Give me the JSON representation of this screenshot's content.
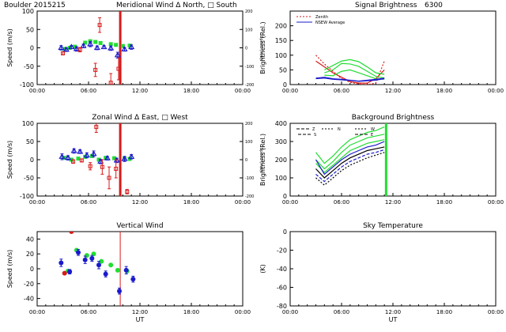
{
  "colors": {
    "red": "#d81b1b",
    "green": "#22dd33",
    "blue": "#1a1acc",
    "black": "#000000",
    "axis": "#000000"
  },
  "chart_data": [
    {
      "id": "meridional",
      "type": "scatter",
      "title_left": "Boulder  2015215",
      "title": "Meridional Wind  Δ North, □ South",
      "ylabel": "Speed (m/s)",
      "ylabel_right": "Speed (m/s)",
      "ylim": [
        -100,
        100
      ],
      "yticks": [
        -100,
        -50,
        0,
        50,
        100
      ],
      "ylim_right": [
        -200,
        200
      ],
      "yticks_right": [
        -200,
        -100,
        0,
        100,
        200
      ],
      "xlim": [
        0,
        24
      ],
      "xticks": [
        "00:00",
        "06:00",
        "12:00",
        "18:00",
        "00:00"
      ],
      "vline": {
        "x": 9.7,
        "color": "red"
      },
      "series": [
        {
          "name": "north-green",
          "color": "green",
          "x": [
            3.2,
            3.8,
            4.4,
            5.6,
            6.2,
            6.8,
            7.4,
            8.6,
            9.2,
            10.0,
            10.8
          ],
          "y": [
            -3,
            0,
            3,
            14,
            18,
            16,
            13,
            10,
            8,
            5,
            6
          ],
          "err": [
            0,
            0,
            0,
            0,
            0,
            0,
            0,
            0,
            0,
            0,
            0
          ]
        },
        {
          "name": "vertical-blue",
          "color": "blue",
          "x": [
            2.8,
            3.4,
            4.0,
            4.6,
            5.4,
            6.2,
            7.0,
            7.8,
            8.6,
            9.4,
            10.2,
            11.0
          ],
          "y": [
            0,
            -5,
            2,
            -3,
            5,
            10,
            0,
            2,
            -1,
            -20,
            -4,
            2
          ],
          "err": [
            6,
            5,
            4,
            6,
            5,
            7,
            5,
            4,
            6,
            8,
            5,
            6
          ]
        },
        {
          "name": "south-red",
          "color": "red",
          "x": [
            3.0,
            5.0,
            6.8,
            7.3,
            8.6,
            9.5
          ],
          "y": [
            -15,
            -5,
            -60,
            62,
            -95,
            -57
          ],
          "err": [
            4,
            6,
            18,
            20,
            25,
            30
          ]
        }
      ]
    },
    {
      "id": "zonal",
      "type": "scatter",
      "title": "Zonal Wind   Δ East, □ West",
      "ylabel": "Speed (m/s)",
      "ylabel_right": "Speed (m/s)",
      "ylim": [
        -100,
        100
      ],
      "yticks": [
        -100,
        -50,
        0,
        50,
        100
      ],
      "ylim_right": [
        -200,
        200
      ],
      "yticks_right": [
        -200,
        -100,
        0,
        100,
        200
      ],
      "xlim": [
        0,
        24
      ],
      "xticks": [
        "00:00",
        "06:00",
        "12:00",
        "18:00",
        "00:00"
      ],
      "vline": {
        "x": 9.7,
        "color": "red"
      },
      "series": [
        {
          "name": "east-green",
          "color": "green",
          "x": [
            3.2,
            4.0,
            4.8,
            5.6,
            6.4,
            7.2,
            8.0,
            9.0,
            10.2,
            10.8
          ],
          "y": [
            5,
            0,
            3,
            8,
            10,
            0,
            5,
            4,
            3,
            2
          ],
          "err": [
            0,
            0,
            0,
            0,
            0,
            0,
            0,
            0,
            0,
            0
          ]
        },
        {
          "name": "vertical-blue",
          "color": "blue",
          "x": [
            2.9,
            3.6,
            4.3,
            5.0,
            5.8,
            6.6,
            7.4,
            8.2,
            9.3,
            10.2,
            11.0
          ],
          "y": [
            8,
            5,
            24,
            22,
            12,
            16,
            -5,
            4,
            -2,
            2,
            8
          ],
          "err": [
            8,
            6,
            6,
            5,
            7,
            8,
            6,
            5,
            6,
            7,
            6
          ]
        },
        {
          "name": "west-red",
          "color": "red",
          "x": [
            4.2,
            5.2,
            6.2,
            6.9,
            7.6,
            8.4,
            9.2,
            10.5
          ],
          "y": [
            -5,
            -2,
            -18,
            90,
            -20,
            -50,
            -25,
            -88
          ],
          "err": [
            5,
            4,
            10,
            15,
            20,
            30,
            25,
            6
          ]
        }
      ]
    },
    {
      "id": "vertical",
      "type": "scatter",
      "title": "Vertical Wind",
      "ylabel": "Speed (m/s)",
      "ylim": [
        -50,
        50
      ],
      "yticks": [
        -40,
        -20,
        0,
        20,
        40
      ],
      "xlim": [
        0,
        24
      ],
      "xticks": [
        "00:00",
        "06:00",
        "12:00",
        "18:00",
        "00:00"
      ],
      "xlabel": "UT",
      "vline": {
        "x": 9.7,
        "color": "red"
      },
      "series": [
        {
          "name": "green",
          "color": "green",
          "x": [
            3.6,
            4.6,
            5.8,
            6.6,
            7.5,
            8.6,
            9.4,
            10.5
          ],
          "y": [
            -3,
            25,
            18,
            20,
            10,
            5,
            -2,
            -3
          ],
          "err": [
            0,
            0,
            0,
            0,
            0,
            0,
            0,
            0
          ]
        },
        {
          "name": "blue",
          "color": "blue",
          "x": [
            2.8,
            3.8,
            4.8,
            5.6,
            6.4,
            7.2,
            8.0,
            9.6,
            10.4,
            11.2
          ],
          "y": [
            8,
            -4,
            22,
            12,
            14,
            5,
            -7,
            -30,
            -2,
            -14
          ],
          "err": [
            5,
            3,
            4,
            5,
            4,
            5,
            4,
            4,
            5,
            4
          ]
        },
        {
          "name": "red",
          "color": "red",
          "x": [
            3.2,
            4.0
          ],
          "y": [
            -6,
            50
          ],
          "err": [
            0,
            0
          ]
        }
      ]
    },
    {
      "id": "signal",
      "type": "line",
      "title": "Signal Brightness",
      "title_right": "6300",
      "ylabel": "Brightness (Rel.)",
      "ylim": [
        0,
        250
      ],
      "yticks": [
        0,
        50,
        100,
        150,
        200
      ],
      "xlim": [
        0,
        24
      ],
      "xticks": [
        "00:00",
        "06:00",
        "12:00",
        "18:00",
        "00:00"
      ],
      "legend": [
        "Zenith",
        "NSEW Average"
      ],
      "series": [
        {
          "name": "Zenith",
          "color": "red",
          "dash": "2,2",
          "x": [
            3,
            4,
            5,
            6,
            7,
            8,
            9,
            10,
            11
          ],
          "y": [
            100,
            70,
            45,
            20,
            8,
            2,
            0,
            5,
            80
          ]
        },
        {
          "name": "red-b",
          "color": "red",
          "x": [
            3,
            4,
            5,
            6,
            7,
            8,
            9,
            10,
            11
          ],
          "y": [
            80,
            60,
            40,
            25,
            10,
            5,
            5,
            20,
            50
          ]
        },
        {
          "name": "green-a",
          "color": "green",
          "x": [
            4,
            5,
            6,
            7,
            8,
            9,
            10,
            11
          ],
          "y": [
            50,
            65,
            80,
            85,
            78,
            60,
            40,
            35
          ]
        },
        {
          "name": "green-b",
          "color": "green",
          "x": [
            4,
            5,
            6,
            7,
            8,
            9,
            10,
            11
          ],
          "y": [
            40,
            50,
            72,
            70,
            62,
            45,
            28,
            22
          ]
        },
        {
          "name": "green-c",
          "color": "green",
          "x": [
            4,
            5,
            6,
            7,
            8,
            9,
            10,
            11
          ],
          "y": [
            32,
            30,
            45,
            50,
            40,
            30,
            20,
            18
          ]
        },
        {
          "name": "NSEW Average",
          "color": "blue",
          "x": [
            3,
            4,
            5,
            6,
            7,
            8,
            9,
            10,
            11
          ],
          "y": [
            22,
            25,
            20,
            18,
            15,
            12,
            15,
            18,
            22
          ]
        },
        {
          "name": "blue-b",
          "color": "blue",
          "x": [
            3,
            4,
            5,
            6,
            7,
            8,
            9,
            10,
            11
          ],
          "y": [
            20,
            22,
            18,
            16,
            14,
            11,
            13,
            15,
            20
          ]
        }
      ]
    },
    {
      "id": "background",
      "type": "line",
      "title": "Background Brightness",
      "ylabel": "Brightness (Rel.)",
      "ylim": [
        0,
        400
      ],
      "yticks": [
        0,
        100,
        200,
        300,
        400
      ],
      "xlim": [
        0,
        24
      ],
      "xticks": [
        "00:00",
        "06:00",
        "12:00",
        "18:00",
        "00:00"
      ],
      "legend": [
        "Z",
        "N",
        "S",
        "W",
        "E"
      ],
      "vline": {
        "x": 11.2,
        "color": "green"
      },
      "series": [
        {
          "name": "green-a",
          "color": "green",
          "x": [
            3,
            4,
            5,
            6,
            7,
            8,
            9,
            10,
            11
          ],
          "y": [
            240,
            180,
            220,
            270,
            310,
            330,
            350,
            360,
            380
          ]
        },
        {
          "name": "green-b",
          "color": "green",
          "x": [
            3,
            4,
            5,
            6,
            7,
            8,
            9,
            10,
            11
          ],
          "y": [
            200,
            150,
            190,
            240,
            280,
            300,
            320,
            330,
            340
          ]
        },
        {
          "name": "green-c",
          "color": "green",
          "x": [
            3,
            4,
            5,
            6,
            7,
            8,
            9,
            10,
            11
          ],
          "y": [
            180,
            130,
            170,
            210,
            250,
            270,
            290,
            300,
            310
          ]
        },
        {
          "name": "blue-a",
          "color": "blue",
          "x": [
            3,
            4,
            5,
            6,
            7,
            8,
            9,
            10,
            11
          ],
          "y": [
            200,
            120,
            160,
            200,
            230,
            250,
            270,
            280,
            300
          ]
        },
        {
          "name": "black-a",
          "color": "black",
          "x": [
            3,
            4,
            5,
            6,
            7,
            8,
            9,
            10,
            11
          ],
          "y": [
            150,
            100,
            140,
            180,
            210,
            230,
            250,
            260,
            270
          ]
        },
        {
          "name": "blue-b",
          "color": "blue",
          "dash": "4,2",
          "x": [
            3,
            4,
            5,
            6,
            7,
            8,
            9,
            10,
            11
          ],
          "y": [
            120,
            80,
            120,
            160,
            190,
            210,
            230,
            240,
            255
          ]
        },
        {
          "name": "black-b",
          "color": "black",
          "dash": "2,2",
          "x": [
            3,
            4,
            5,
            6,
            7,
            8,
            9,
            10,
            11
          ],
          "y": [
            100,
            60,
            100,
            140,
            170,
            190,
            210,
            225,
            240
          ]
        },
        {
          "name": "drop",
          "color": "green",
          "dash": "3,2",
          "x": [
            11.2,
            11.2
          ],
          "y": [
            290,
            0
          ]
        }
      ]
    },
    {
      "id": "sky",
      "type": "line",
      "title": "Sky Temperature",
      "ylabel": "(K)",
      "ylim": [
        -80,
        0
      ],
      "yticks": [
        -80,
        -60,
        -40,
        -20,
        0
      ],
      "xlim": [
        0,
        24
      ],
      "xticks": [
        "00:00",
        "06:00",
        "12:00",
        "18:00",
        "00:00"
      ],
      "xlabel": "UT",
      "series": []
    }
  ]
}
